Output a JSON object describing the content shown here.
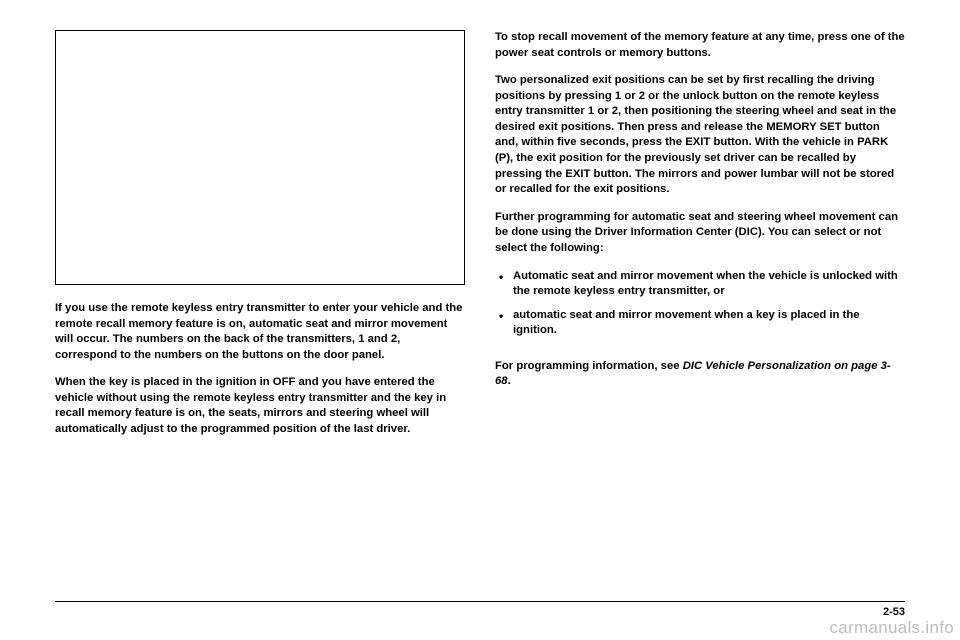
{
  "left": {
    "p1": "If you use the remote keyless entry transmitter to enter your vehicle and the remote recall memory feature is on, automatic seat and mirror movement will occur. The numbers on the back of the transmitters, 1 and 2, correspond to the numbers on the buttons on the door panel.",
    "p2": "When the key is placed in the ignition in OFF and you have entered the vehicle without using the remote keyless entry transmitter and the key in recall memory feature is on, the seats, mirrors and steering wheel will automatically adjust to the programmed position of the last driver."
  },
  "right": {
    "p1": "To stop recall movement of the memory feature at any time, press one of the power seat controls or memory buttons.",
    "p2": "Two personalized exit positions can be set by first recalling the driving positions by pressing 1 or 2 or the unlock button on the remote keyless entry transmitter 1 or 2, then positioning the steering wheel and seat in the desired exit positions. Then press and release the MEMORY SET button and, within five seconds, press the EXIT button. With the vehicle in PARK (P), the exit position for the previously set driver can be recalled by pressing the EXIT button. The mirrors and power lumbar will not be stored or recalled for the exit positions.",
    "p3": "Further programming for automatic seat and steering wheel movement can be done using the Driver Information Center (DIC). You can select or not select the following:",
    "b1": "Automatic seat and mirror movement when the vehicle is unlocked with the remote keyless entry transmitter, or",
    "b2": "automatic seat and mirror movement when a key is placed in the ignition.",
    "p4a": "For programming information, see ",
    "p4b": "DIC Vehicle Personalization on page 3-68",
    "p4c": "."
  },
  "pagenum": "2-53",
  "watermark": "carmanuals.info"
}
